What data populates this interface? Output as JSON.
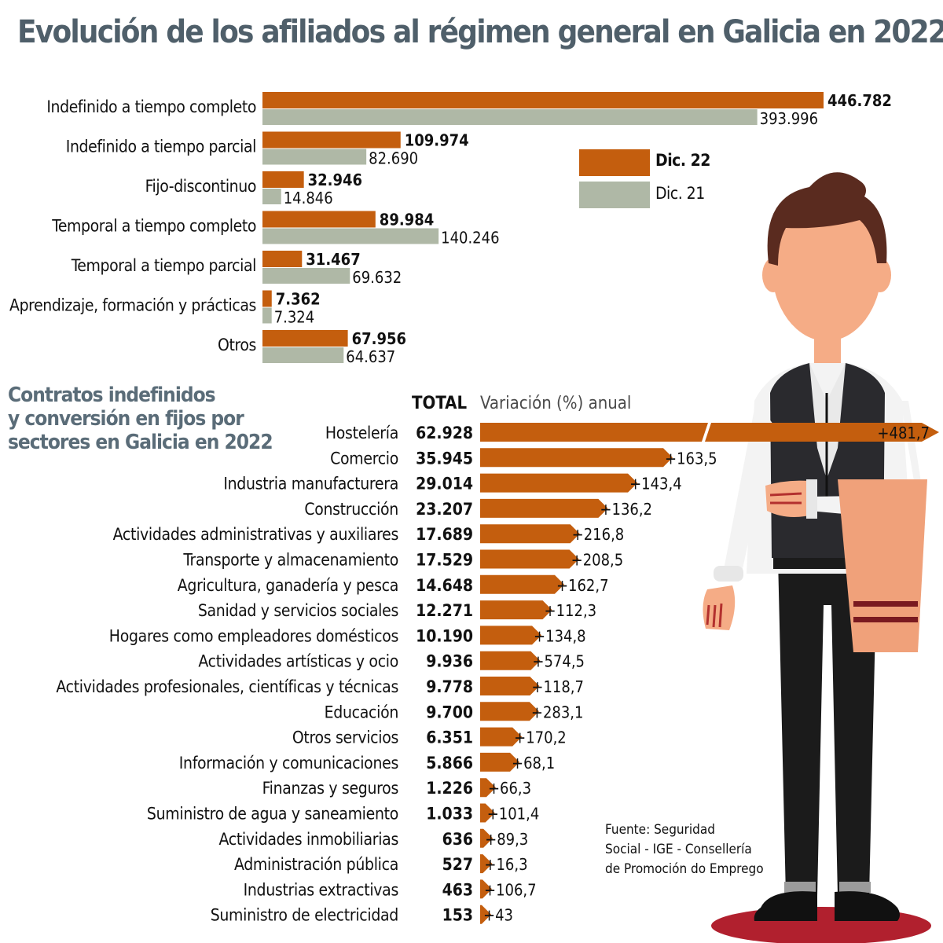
{
  "title": "Evolución de los afiliados al régimen general en Galicia en 2022",
  "subtitle": [
    "Contratos indefinidos",
    "y conversión en fijos por",
    "sectores en Galicia en 2022"
  ],
  "legend": [
    {
      "label": "Dic. 22",
      "color": "#c45e0e"
    },
    {
      "label": "Dic. 21",
      "color": "#afb8a6"
    }
  ],
  "header_total": "TOTAL",
  "header_variation": "Variación (%) anual",
  "source": [
    "Fuente: Seguridad",
    "Social - IGE - Consellería",
    "de Promoción do Emprego"
  ],
  "colors": {
    "orange": "#c45e0e",
    "gray": "#afb8a6",
    "title": "#4f5f6a"
  },
  "illustration": "waiter-icon",
  "chart_data": [
    {
      "type": "bar",
      "orientation": "horizontal",
      "categories": [
        "Indefinido a tiempo completo",
        "Indefinido a tiempo parcial",
        "Fijo-discontinuo",
        "Temporal a tiempo completo",
        "Temporal a tiempo parcial",
        "Aprendizaje, formación y prácticas",
        "Otros"
      ],
      "series": [
        {
          "name": "Dic. 22",
          "values": [
            446782,
            109974,
            32946,
            89984,
            31467,
            7362,
            67956
          ],
          "labels": [
            "446.782",
            "109.974",
            "32.946",
            "89.984",
            "31.467",
            "7.362",
            "67.956"
          ]
        },
        {
          "name": "Dic. 21",
          "values": [
            393996,
            82690,
            14846,
            140246,
            69632,
            7324,
            64637
          ],
          "labels": [
            "393.996",
            "82.690",
            "14.846",
            "140.246",
            "69.632",
            "7.324",
            "64.637"
          ]
        }
      ]
    },
    {
      "type": "bar",
      "orientation": "horizontal",
      "categories": [
        "Hostelería",
        "Comercio",
        "Industria manufacturera",
        "Construcción",
        "Actividades administrativas y auxiliares",
        "Transporte y almacenamiento",
        "Agricultura, ganadería y pesca",
        "Sanidad y servicios sociales",
        "Hogares como empleadores domésticos",
        "Actividades artísticas y ocio",
        "Actividades profesionales, científicas y técnicas",
        "Educación",
        "Otros servicios",
        "Información y comunicaciones",
        "Finanzas y seguros",
        "Suministro de agua y saneamiento",
        "Actividades inmobiliarias",
        "Administración pública",
        "Industrias extractivas",
        "Suministro de electricidad"
      ],
      "totals": [
        62928,
        35945,
        29014,
        23207,
        17689,
        17529,
        14648,
        12271,
        10190,
        9936,
        9778,
        9700,
        6351,
        5866,
        1226,
        1033,
        636,
        527,
        463,
        153
      ],
      "total_labels": [
        "62.928",
        "35.945",
        "29.014",
        "23.207",
        "17.689",
        "17.529",
        "14.648",
        "12.271",
        "10.190",
        "9.936",
        "9.778",
        "9.700",
        "6.351",
        "5.866",
        "1.226",
        "1.033",
        "636",
        "527",
        "463",
        "153"
      ],
      "variation_pct": [
        481.7,
        163.5,
        143.4,
        136.2,
        216.8,
        208.5,
        162.7,
        112.3,
        134.8,
        574.5,
        118.7,
        283.1,
        170.2,
        68.1,
        66.3,
        101.4,
        89.3,
        16.3,
        106.7,
        43
      ],
      "variation_labels": [
        "+481,7",
        "+163,5",
        "+143,4",
        "+136,2",
        "+216,8",
        "+208,5",
        "+162,7",
        "+112,3",
        "+134,8",
        "+574,5",
        "+118,7",
        "+283,1",
        "+170,2",
        "+68,1",
        "+66,3",
        "+101,4",
        "+89,3",
        "+16,3",
        "+106,7",
        "+43"
      ],
      "bar_length_encodes": "totals",
      "axis_break": "Hostelería"
    }
  ]
}
